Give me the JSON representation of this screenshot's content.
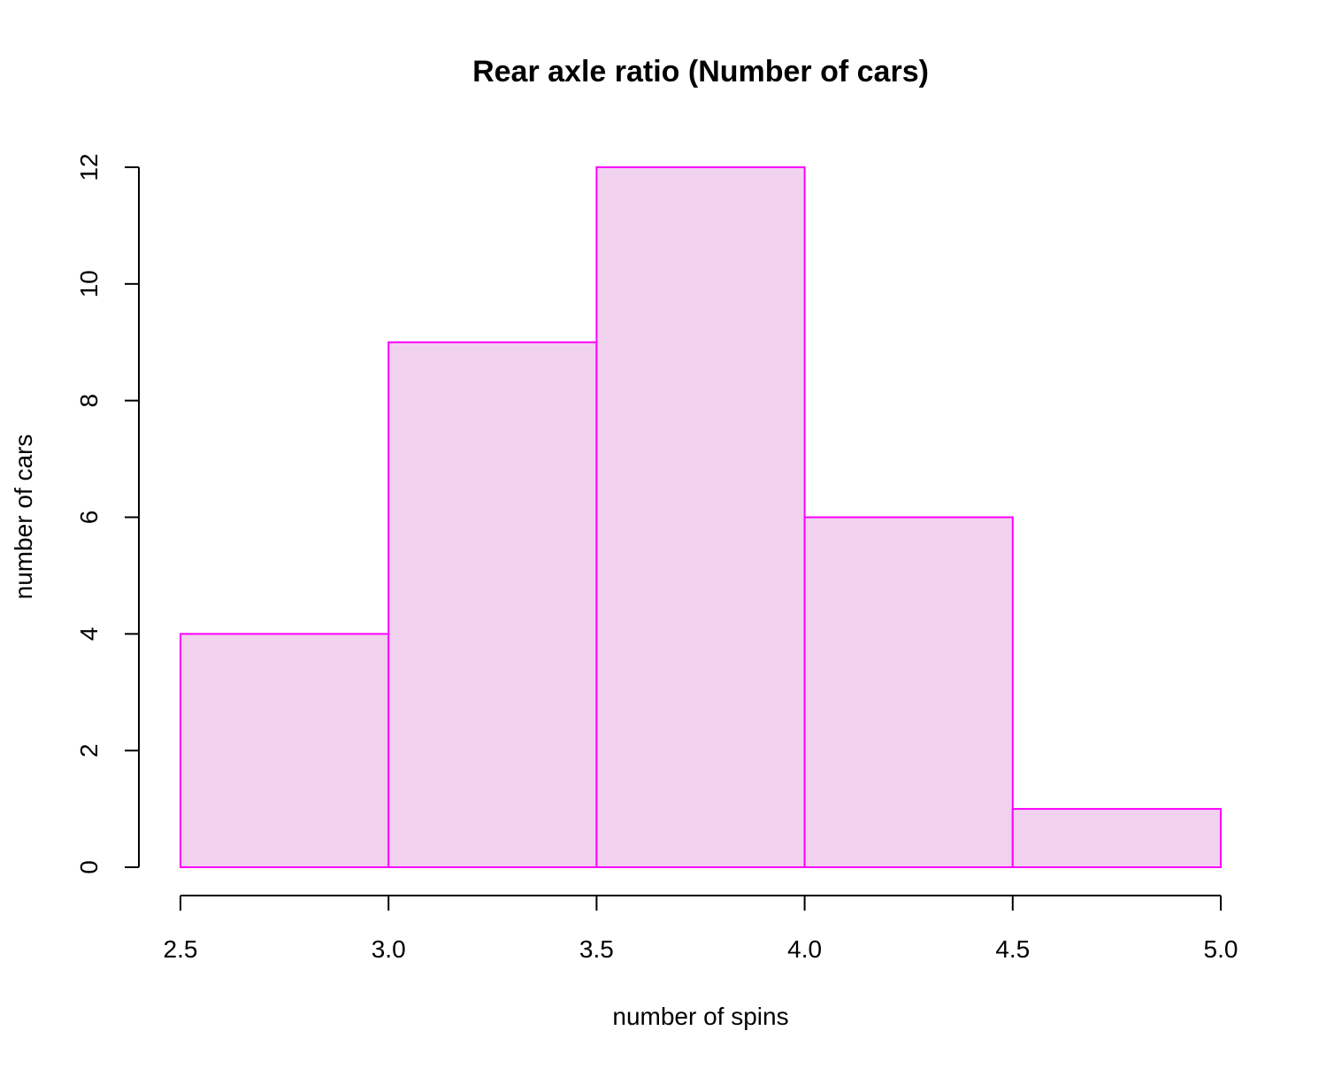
{
  "chart_data": {
    "type": "bar",
    "title": "Rear axle ratio (Number of cars)",
    "xlabel": "number of spins",
    "ylabel": "number of cars",
    "bins": [
      {
        "start": 2.5,
        "end": 3.0,
        "count": 4
      },
      {
        "start": 3.0,
        "end": 3.5,
        "count": 9
      },
      {
        "start": 3.5,
        "end": 4.0,
        "count": 12
      },
      {
        "start": 4.0,
        "end": 4.5,
        "count": 6
      },
      {
        "start": 4.5,
        "end": 5.0,
        "count": 1
      }
    ],
    "xlim": [
      2.5,
      5.0
    ],
    "ylim": [
      0,
      12
    ],
    "x_ticks": [
      "2.5",
      "3.0",
      "3.5",
      "4.0",
      "4.5",
      "5.0"
    ],
    "y_ticks": [
      "0",
      "2",
      "4",
      "6",
      "8",
      "10",
      "12"
    ],
    "bar_fill": "#f0d2ee",
    "bar_border": "#ff00ff",
    "grid": false,
    "legend": "none"
  }
}
